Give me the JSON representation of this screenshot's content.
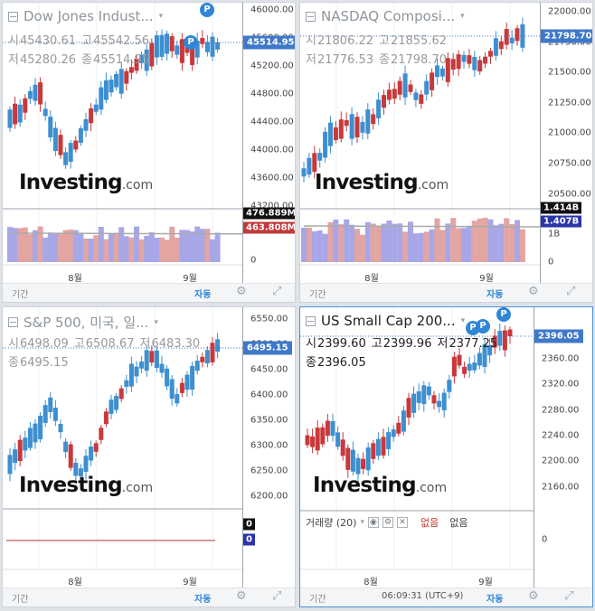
{
  "colors": {
    "up": "#3d8fd0",
    "down": "#c8393b",
    "vol_up": "#a7a7e8",
    "vol_down": "#e3a5a2",
    "price_tag": "#3f78c8",
    "vol_tag_red": "#c03a3a",
    "vol_tag_black": "#111111",
    "vol_tag_blue": "#2b35a8"
  },
  "panels": [
    {
      "id": "dow",
      "title": "Dow Jones Indust...",
      "active": false,
      "ohlc": {
        "open_label": "시",
        "open": "45430.61",
        "high_label": "고",
        "high": "45542.56",
        "low_label": "저",
        "low": "45280.26",
        "close_label": "종",
        "close": "45514.95"
      },
      "last_price": "45514.95",
      "y_ticks": [
        "46000.00",
        "45600.00",
        "45200.00",
        "44800.00",
        "44400.00",
        "44000.00",
        "43600.00",
        "43200.00"
      ],
      "vol_tags": [
        {
          "label": "476.889M",
          "color": "black"
        },
        {
          "label": "463.808M",
          "color": "red"
        }
      ],
      "vol_ticks": [
        "0"
      ],
      "months": [
        "8월",
        "9월"
      ],
      "bottom": {
        "period": "기간",
        "auto": "자동"
      },
      "logo": "Investing",
      "logo_suffix": ".com",
      "badges": [
        "P",
        "P"
      ]
    },
    {
      "id": "nasdaq",
      "title": "NASDAQ Composi...",
      "active": false,
      "ohlc": {
        "open_label": "시",
        "open": "21806.22",
        "high_label": "고",
        "high": "21855.62",
        "low_label": "저",
        "low": "21776.53",
        "close_label": "종",
        "close": "21798.70"
      },
      "last_price": "21798.70",
      "y_ticks": [
        "22000.00",
        "21750.00",
        "21500.00",
        "21250.00",
        "21000.00",
        "20750.00",
        "20500.00"
      ],
      "vol_tags": [
        {
          "label": "1.414B",
          "color": "black"
        },
        {
          "label": "1.407B",
          "color": "blue"
        }
      ],
      "vol_ticks": [
        "1B",
        "0"
      ],
      "months": [
        "8월",
        "9월"
      ],
      "bottom": {
        "period": "기간",
        "auto": "자동"
      },
      "logo": "Investing",
      "logo_suffix": ".com",
      "badges": []
    },
    {
      "id": "sp500",
      "title": "S&P 500, 미국, 일...",
      "active": false,
      "ohlc": {
        "open_label": "시",
        "open": "6498.09",
        "high_label": "고",
        "high": "6508.67",
        "low_label": "저",
        "low": "6483.30",
        "close_label": "종",
        "close": "6495.15"
      },
      "last_price": "6495.15",
      "y_ticks": [
        "6550.00",
        "6500.00",
        "6450.00",
        "6400.00",
        "6350.00",
        "6300.00",
        "6250.00",
        "6200.00"
      ],
      "vol_tags": [
        {
          "label": "0",
          "color": "black"
        },
        {
          "label": "0",
          "color": "blue"
        }
      ],
      "vol_ticks": [],
      "months": [
        "8월",
        "9월"
      ],
      "bottom": {
        "period": "기간",
        "auto": "자동"
      },
      "logo": "Investing",
      "logo_suffix": ".com",
      "badges": []
    },
    {
      "id": "smallcap",
      "title": "US Small Cap 200...",
      "active": true,
      "ohlc": {
        "open_label": "시",
        "open": "2399.60",
        "high_label": "고",
        "high": "2399.96",
        "low_label": "저",
        "low": "2377.25",
        "close_label": "종",
        "close": "2396.05"
      },
      "last_price": "2396.05",
      "y_ticks": [
        "2360.00",
        "2320.00",
        "2280.00",
        "2240.00",
        "2200.00",
        "2160.00"
      ],
      "vol_ticks": [
        "0"
      ],
      "vol_header": {
        "label": "거래량 (20)",
        "none1": "없음",
        "none2": "없음"
      },
      "months": [
        "8월",
        "9월"
      ],
      "bottom": {
        "period": "기간",
        "auto": "자동",
        "clock": "06:09:31 (UTC+9)"
      },
      "logo": "Investing",
      "logo_suffix": ".com",
      "badges": [
        "P",
        "P",
        "P"
      ]
    }
  ]
}
